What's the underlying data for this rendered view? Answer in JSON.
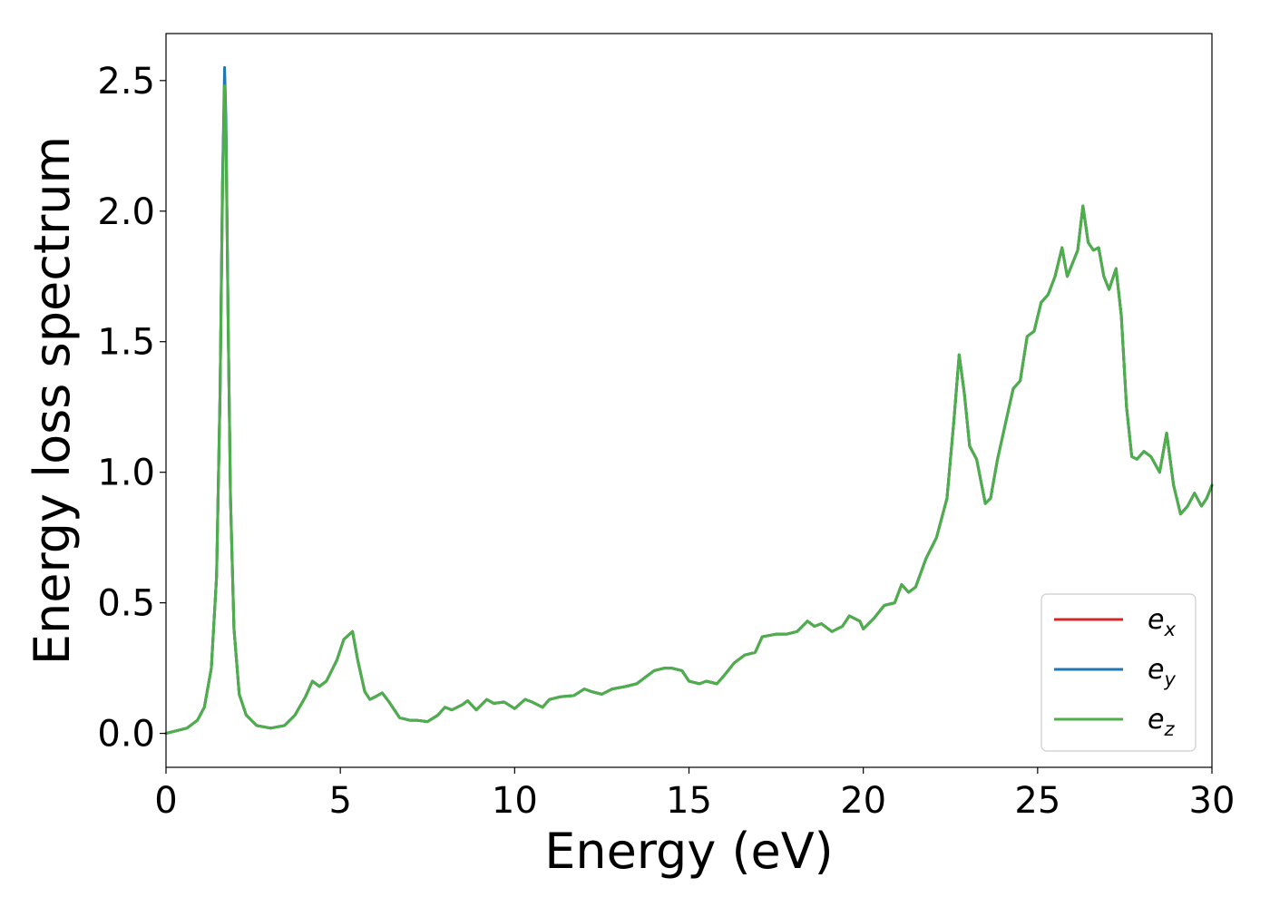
{
  "chart_data": {
    "type": "line",
    "title": "",
    "xlabel": "Energy (eV)",
    "ylabel": "Energy loss spectrum",
    "xlim": [
      0,
      30
    ],
    "ylim": [
      -0.13,
      2.68
    ],
    "xticks": [
      0,
      5,
      10,
      15,
      20,
      25,
      30
    ],
    "xtick_labels": [
      "0",
      "5",
      "10",
      "15",
      "20",
      "25",
      "30"
    ],
    "yticks": [
      0.0,
      0.5,
      1.0,
      1.5,
      2.0,
      2.5
    ],
    "ytick_labels": [
      "0.0",
      "0.5",
      "1.0",
      "1.5",
      "2.0",
      "2.5"
    ],
    "grid": false,
    "legend_position": "lower-right",
    "x": [
      0,
      0.3,
      0.6,
      0.9,
      1.1,
      1.3,
      1.45,
      1.55,
      1.62,
      1.68,
      1.72,
      1.78,
      1.85,
      1.95,
      2.1,
      2.3,
      2.6,
      3.0,
      3.4,
      3.7,
      4.0,
      4.2,
      4.4,
      4.6,
      4.9,
      5.1,
      5.35,
      5.5,
      5.7,
      5.85,
      6.0,
      6.2,
      6.4,
      6.7,
      7.0,
      7.2,
      7.5,
      7.8,
      8.0,
      8.2,
      8.5,
      8.65,
      8.9,
      9.2,
      9.4,
      9.7,
      10.0,
      10.3,
      10.5,
      10.8,
      11.0,
      11.3,
      11.7,
      12.0,
      12.2,
      12.5,
      12.8,
      13.2,
      13.5,
      13.8,
      14.0,
      14.3,
      14.5,
      14.8,
      15.0,
      15.3,
      15.5,
      15.8,
      16.0,
      16.3,
      16.6,
      16.9,
      17.1,
      17.5,
      17.8,
      18.1,
      18.4,
      18.6,
      18.8,
      19.1,
      19.4,
      19.6,
      19.9,
      20.0,
      20.3,
      20.6,
      20.9,
      21.1,
      21.3,
      21.5,
      21.8,
      22.1,
      22.4,
      22.6,
      22.75,
      22.9,
      23.05,
      23.25,
      23.5,
      23.65,
      23.85,
      24.1,
      24.3,
      24.5,
      24.7,
      24.9,
      25.1,
      25.3,
      25.5,
      25.7,
      25.85,
      26.0,
      26.15,
      26.3,
      26.45,
      26.6,
      26.75,
      26.9,
      27.05,
      27.25,
      27.4,
      27.55,
      27.7,
      27.85,
      28.05,
      28.25,
      28.5,
      28.7,
      28.9,
      29.1,
      29.3,
      29.5,
      29.7,
      29.85,
      30.0
    ],
    "series": [
      {
        "name": "e_x",
        "color": "#d62728",
        "values": [
          0.0,
          0.01,
          0.02,
          0.05,
          0.1,
          0.25,
          0.6,
          1.3,
          2.1,
          2.5,
          2.3,
          1.6,
          0.9,
          0.4,
          0.15,
          0.07,
          0.03,
          0.02,
          0.03,
          0.07,
          0.14,
          0.2,
          0.18,
          0.2,
          0.28,
          0.36,
          0.39,
          0.28,
          0.16,
          0.13,
          0.14,
          0.155,
          0.12,
          0.06,
          0.05,
          0.05,
          0.045,
          0.07,
          0.1,
          0.09,
          0.11,
          0.125,
          0.09,
          0.13,
          0.115,
          0.12,
          0.095,
          0.13,
          0.12,
          0.1,
          0.13,
          0.14,
          0.145,
          0.17,
          0.16,
          0.15,
          0.17,
          0.18,
          0.19,
          0.22,
          0.24,
          0.25,
          0.25,
          0.24,
          0.2,
          0.19,
          0.2,
          0.19,
          0.22,
          0.27,
          0.3,
          0.31,
          0.37,
          0.38,
          0.38,
          0.39,
          0.43,
          0.41,
          0.42,
          0.39,
          0.41,
          0.45,
          0.43,
          0.4,
          0.44,
          0.49,
          0.5,
          0.57,
          0.54,
          0.56,
          0.67,
          0.75,
          0.9,
          1.2,
          1.45,
          1.3,
          1.1,
          1.05,
          0.88,
          0.9,
          1.05,
          1.2,
          1.32,
          1.35,
          1.52,
          1.54,
          1.65,
          1.68,
          1.75,
          1.86,
          1.75,
          1.8,
          1.85,
          2.02,
          1.88,
          1.85,
          1.86,
          1.75,
          1.7,
          1.78,
          1.6,
          1.25,
          1.06,
          1.05,
          1.08,
          1.06,
          1.0,
          1.15,
          0.95,
          0.84,
          0.87,
          0.92,
          0.87,
          0.9,
          0.95
        ]
      },
      {
        "name": "e_y",
        "color": "#1f77b4",
        "values": [
          0.0,
          0.01,
          0.02,
          0.05,
          0.1,
          0.25,
          0.6,
          1.3,
          2.1,
          2.55,
          2.35,
          1.6,
          0.9,
          0.4,
          0.15,
          0.07,
          0.03,
          0.02,
          0.03,
          0.07,
          0.14,
          0.2,
          0.18,
          0.2,
          0.28,
          0.36,
          0.39,
          0.28,
          0.16,
          0.13,
          0.14,
          0.155,
          0.12,
          0.06,
          0.05,
          0.05,
          0.045,
          0.07,
          0.1,
          0.09,
          0.11,
          0.125,
          0.09,
          0.13,
          0.115,
          0.12,
          0.095,
          0.13,
          0.12,
          0.1,
          0.13,
          0.14,
          0.145,
          0.17,
          0.16,
          0.15,
          0.17,
          0.18,
          0.19,
          0.22,
          0.24,
          0.25,
          0.25,
          0.24,
          0.2,
          0.19,
          0.2,
          0.19,
          0.22,
          0.27,
          0.3,
          0.31,
          0.37,
          0.38,
          0.38,
          0.39,
          0.43,
          0.41,
          0.42,
          0.39,
          0.41,
          0.45,
          0.43,
          0.4,
          0.44,
          0.49,
          0.5,
          0.57,
          0.54,
          0.56,
          0.67,
          0.75,
          0.9,
          1.2,
          1.45,
          1.3,
          1.1,
          1.05,
          0.88,
          0.9,
          1.05,
          1.2,
          1.32,
          1.35,
          1.52,
          1.54,
          1.65,
          1.68,
          1.75,
          1.86,
          1.75,
          1.8,
          1.85,
          2.02,
          1.88,
          1.85,
          1.86,
          1.75,
          1.7,
          1.78,
          1.6,
          1.25,
          1.06,
          1.05,
          1.08,
          1.06,
          1.0,
          1.15,
          0.95,
          0.84,
          0.87,
          0.92,
          0.87,
          0.9,
          0.95
        ]
      },
      {
        "name": "e_z",
        "color": "#4daf4a",
        "values": [
          0.0,
          0.01,
          0.02,
          0.05,
          0.1,
          0.25,
          0.6,
          1.3,
          2.05,
          2.48,
          2.3,
          1.6,
          0.9,
          0.4,
          0.15,
          0.07,
          0.03,
          0.02,
          0.03,
          0.07,
          0.14,
          0.2,
          0.18,
          0.2,
          0.28,
          0.36,
          0.39,
          0.28,
          0.16,
          0.13,
          0.14,
          0.155,
          0.12,
          0.06,
          0.05,
          0.05,
          0.045,
          0.07,
          0.1,
          0.09,
          0.11,
          0.125,
          0.09,
          0.13,
          0.115,
          0.12,
          0.095,
          0.13,
          0.12,
          0.1,
          0.13,
          0.14,
          0.145,
          0.17,
          0.16,
          0.15,
          0.17,
          0.18,
          0.19,
          0.22,
          0.24,
          0.25,
          0.25,
          0.24,
          0.2,
          0.19,
          0.2,
          0.19,
          0.22,
          0.27,
          0.3,
          0.31,
          0.37,
          0.38,
          0.38,
          0.39,
          0.43,
          0.41,
          0.42,
          0.39,
          0.41,
          0.45,
          0.43,
          0.4,
          0.44,
          0.49,
          0.5,
          0.57,
          0.54,
          0.56,
          0.67,
          0.75,
          0.9,
          1.2,
          1.45,
          1.3,
          1.1,
          1.05,
          0.88,
          0.9,
          1.05,
          1.2,
          1.32,
          1.35,
          1.52,
          1.54,
          1.65,
          1.68,
          1.75,
          1.86,
          1.75,
          1.8,
          1.85,
          2.02,
          1.88,
          1.85,
          1.86,
          1.75,
          1.7,
          1.78,
          1.6,
          1.25,
          1.06,
          1.05,
          1.08,
          1.06,
          1.0,
          1.15,
          0.95,
          0.84,
          0.87,
          0.92,
          0.87,
          0.9,
          0.95
        ]
      }
    ],
    "legend": [
      {
        "base": "e",
        "sub": "x",
        "color": "#d62728"
      },
      {
        "base": "e",
        "sub": "y",
        "color": "#1f77b4"
      },
      {
        "base": "e",
        "sub": "z",
        "color": "#4daf4a"
      }
    ]
  }
}
